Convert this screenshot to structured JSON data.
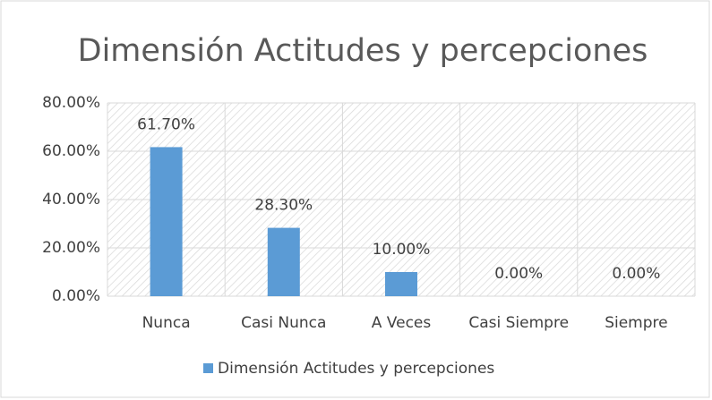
{
  "chart_data": {
    "type": "bar",
    "title": "Dimensión Actitudes y percepciones",
    "categories": [
      "Nunca",
      "Casi Nunca",
      "A Veces",
      "Casi Siempre",
      "Siempre"
    ],
    "series": [
      {
        "name": "Dimensión Actitudes y percepciones",
        "color": "#5b9bd5",
        "values": [
          61.7,
          28.3,
          10,
          0,
          0
        ],
        "value_labels": [
          "61.70%",
          "28.30%",
          "10.00%",
          "0.00%",
          "0.00%"
        ]
      }
    ],
    "ylim": [
      0,
      80
    ],
    "yticks": [
      {
        "value": 0,
        "label": "0.00%"
      },
      {
        "value": 20,
        "label": "20.00%"
      },
      {
        "value": 40,
        "label": "40.00%"
      },
      {
        "value": 60,
        "label": "60.00%"
      },
      {
        "value": 80,
        "label": "80.00%"
      }
    ],
    "grid": true,
    "legend": "bottom"
  }
}
